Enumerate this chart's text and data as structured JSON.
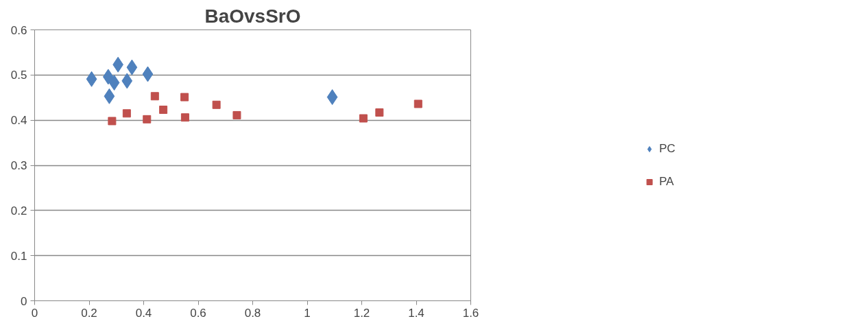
{
  "chart_data": {
    "type": "scatter",
    "title": "BaOvsSrO",
    "series": [
      {
        "name": "PC",
        "color": "#4f81bd",
        "marker": "diamond",
        "x": [
          0.209,
          0.27,
          0.274,
          0.292,
          0.306,
          0.339,
          0.357,
          0.415,
          1.092
        ],
        "values": [
          0.491,
          0.496,
          0.453,
          0.483,
          0.523,
          0.487,
          0.517,
          0.502,
          0.451
        ]
      },
      {
        "name": "PA",
        "color": "#c0504d",
        "marker": "square",
        "x": [
          0.284,
          0.338,
          0.412,
          0.441,
          0.472,
          0.55,
          0.552,
          0.667,
          0.742,
          1.206,
          1.265,
          1.407
        ],
        "values": [
          0.398,
          0.415,
          0.402,
          0.453,
          0.423,
          0.451,
          0.406,
          0.434,
          0.411,
          0.404,
          0.417,
          0.436
        ]
      }
    ],
    "xlim": [
      0,
      1.6
    ],
    "xticks": [
      0,
      0.2,
      0.4,
      0.6,
      0.8,
      1,
      1.2,
      1.4,
      1.6
    ],
    "ylim": [
      0,
      0.6
    ],
    "yticks": [
      0,
      0.1,
      0.2,
      0.3,
      0.4,
      0.5,
      0.6
    ],
    "grid": "y",
    "legend": "right"
  }
}
